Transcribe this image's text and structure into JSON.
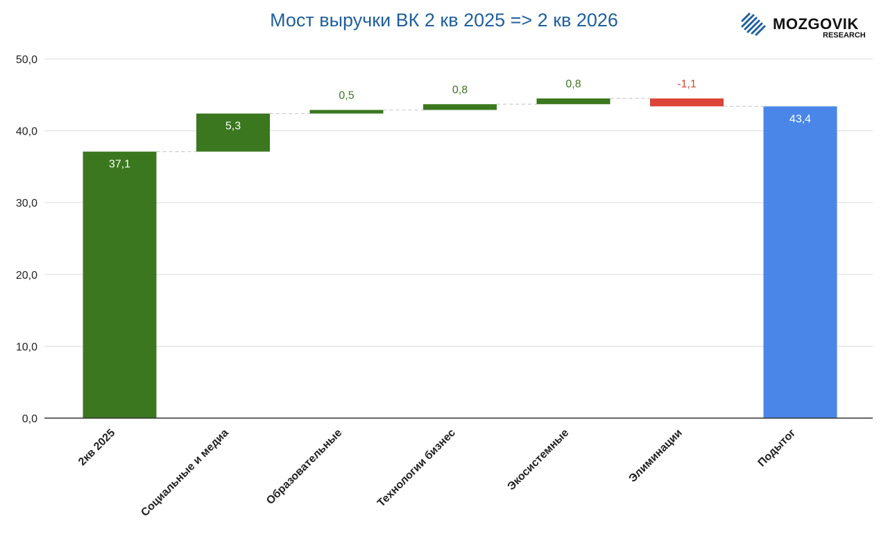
{
  "title": "Мост выручки ВК 2 кв 2025 => 2 кв 2026",
  "logo": {
    "main": "MOZGOVIK",
    "sub": "RESEARCH"
  },
  "colors": {
    "increase": "#3b771f",
    "decrease": "#db4437",
    "total": "#4a86e8",
    "title": "#1f5f9e",
    "grid": "#d9d9d9",
    "connector": "#cccccc"
  },
  "chart_data": {
    "type": "waterfall",
    "title": "Мост выручки ВК 2 кв 2025 => 2 кв 2026",
    "ylim": [
      0,
      50
    ],
    "yticks": [
      "0,0",
      "10,0",
      "20,0",
      "30,0",
      "40,0",
      "50,0"
    ],
    "grid": true,
    "legend": "none",
    "bars": [
      {
        "category": "2кв 2025",
        "kind": "start",
        "value": 37.1,
        "label": "37,1"
      },
      {
        "category": "Социальные и медиа",
        "kind": "increase",
        "value": 5.3,
        "label": "5,3"
      },
      {
        "category": "Образовательные",
        "kind": "increase",
        "value": 0.5,
        "label": "0,5"
      },
      {
        "category": "Технологии бизнес",
        "kind": "increase",
        "value": 0.8,
        "label": "0,8"
      },
      {
        "category": "Экосистемные",
        "kind": "increase",
        "value": 0.8,
        "label": "0,8"
      },
      {
        "category": "Элиминации",
        "kind": "decrease",
        "value": -1.1,
        "label": "-1,1"
      },
      {
        "category": "Подытог",
        "kind": "total",
        "value": 43.4,
        "label": "43,4"
      }
    ]
  }
}
